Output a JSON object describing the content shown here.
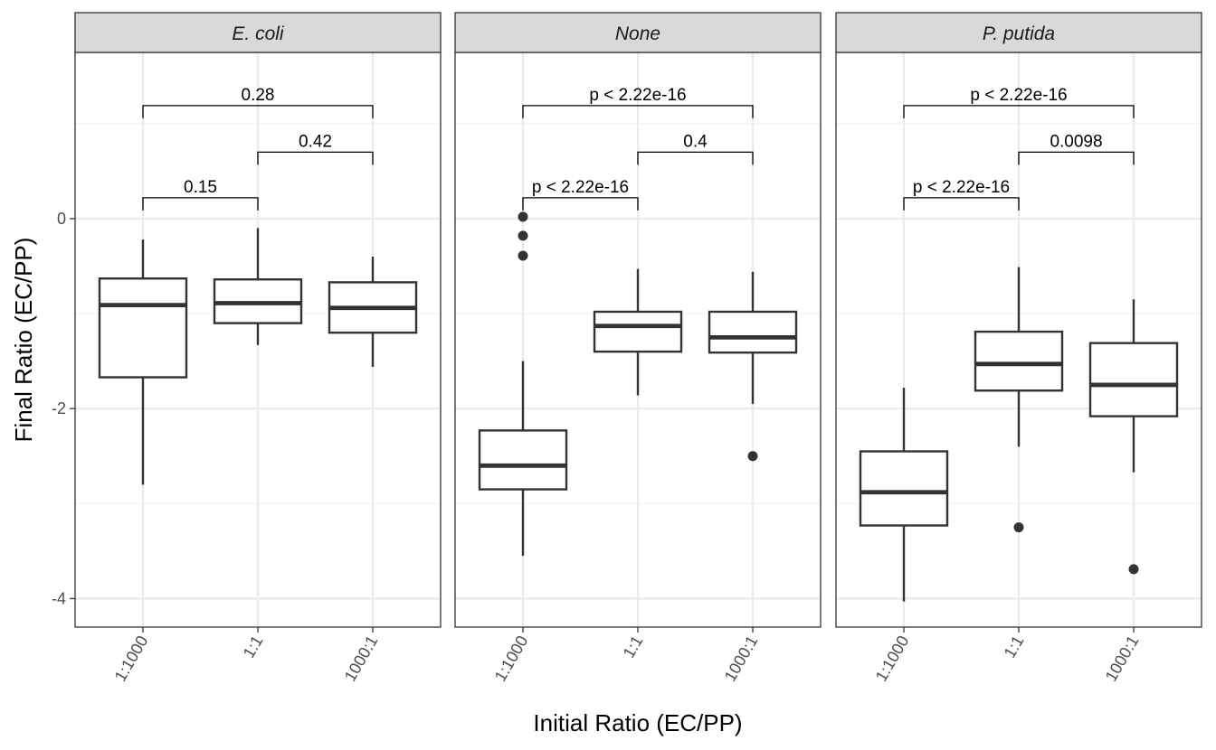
{
  "chart_data": {
    "type": "boxplot",
    "xlabel": "Initial Ratio (EC/PP)",
    "ylabel": "Final Ratio (EC/PP)",
    "ylim": [
      -4.3,
      1.75
    ],
    "y_ticks": [
      -4,
      -2,
      0
    ],
    "y_tick_labels": [
      "-4",
      "-2",
      "0"
    ],
    "categories": [
      "1:1000",
      "1:1",
      "1000:1"
    ],
    "grid": true,
    "panels": [
      {
        "facet": "E. coli",
        "boxes": [
          {
            "category": "1:1000",
            "lower_whisker": -2.8,
            "q1": -1.67,
            "median": -0.91,
            "q3": -0.63,
            "upper_whisker": -0.22,
            "outliers": []
          },
          {
            "category": "1:1",
            "lower_whisker": -1.33,
            "q1": -1.1,
            "median": -0.89,
            "q3": -0.64,
            "upper_whisker": -0.1,
            "outliers": []
          },
          {
            "category": "1000:1",
            "lower_whisker": -1.56,
            "q1": -1.2,
            "median": -0.94,
            "q3": -0.67,
            "upper_whisker": -0.4,
            "outliers": []
          }
        ],
        "comparisons": [
          {
            "from": "1:1000",
            "to": "1:1",
            "label": "0.15",
            "level": 0.22
          },
          {
            "from": "1:1",
            "to": "1000:1",
            "label": "0.42",
            "level": 0.7
          },
          {
            "from": "1:1000",
            "to": "1000:1",
            "label": "0.28",
            "level": 1.19
          }
        ]
      },
      {
        "facet": "None",
        "boxes": [
          {
            "category": "1:1000",
            "lower_whisker": -3.55,
            "q1": -2.85,
            "median": -2.6,
            "q3": -2.23,
            "upper_whisker": -1.5,
            "outliers": [
              0.02,
              -0.18,
              -0.39
            ]
          },
          {
            "category": "1:1",
            "lower_whisker": -1.86,
            "q1": -1.4,
            "median": -1.13,
            "q3": -0.98,
            "upper_whisker": -0.53,
            "outliers": []
          },
          {
            "category": "1000:1",
            "lower_whisker": -1.95,
            "q1": -1.41,
            "median": -1.25,
            "q3": -0.98,
            "upper_whisker": -0.56,
            "outliers": [
              -2.5
            ]
          }
        ],
        "comparisons": [
          {
            "from": "1:1000",
            "to": "1:1",
            "label": "p < 2.22e-16",
            "level": 0.22
          },
          {
            "from": "1:1",
            "to": "1000:1",
            "label": "0.4",
            "level": 0.7
          },
          {
            "from": "1:1000",
            "to": "1000:1",
            "label": "p < 2.22e-16",
            "level": 1.19
          }
        ]
      },
      {
        "facet": "P. putida",
        "boxes": [
          {
            "category": "1:1000",
            "lower_whisker": -4.03,
            "q1": -3.23,
            "median": -2.88,
            "q3": -2.45,
            "upper_whisker": -1.78,
            "outliers": []
          },
          {
            "category": "1:1",
            "lower_whisker": -2.4,
            "q1": -1.81,
            "median": -1.53,
            "q3": -1.19,
            "upper_whisker": -0.51,
            "outliers": [
              -3.25
            ]
          },
          {
            "category": "1000:1",
            "lower_whisker": -2.67,
            "q1": -2.08,
            "median": -1.75,
            "q3": -1.31,
            "upper_whisker": -0.85,
            "outliers": [
              -3.69
            ]
          }
        ],
        "comparisons": [
          {
            "from": "1:1000",
            "to": "1:1",
            "label": "p < 2.22e-16",
            "level": 0.22
          },
          {
            "from": "1:1",
            "to": "1000:1",
            "label": "0.0098",
            "level": 0.7
          },
          {
            "from": "1:1000",
            "to": "1000:1",
            "label": "p < 2.22e-16",
            "level": 1.19
          }
        ]
      }
    ]
  },
  "colors": {
    "panel_border": "#333333",
    "strip_fill": "#d9d9d9",
    "grid_major": "#ebebeb",
    "grid_minor": "#f2f2f2",
    "box_line": "#333333",
    "outlier": "#333333",
    "bracket": "#000000"
  }
}
